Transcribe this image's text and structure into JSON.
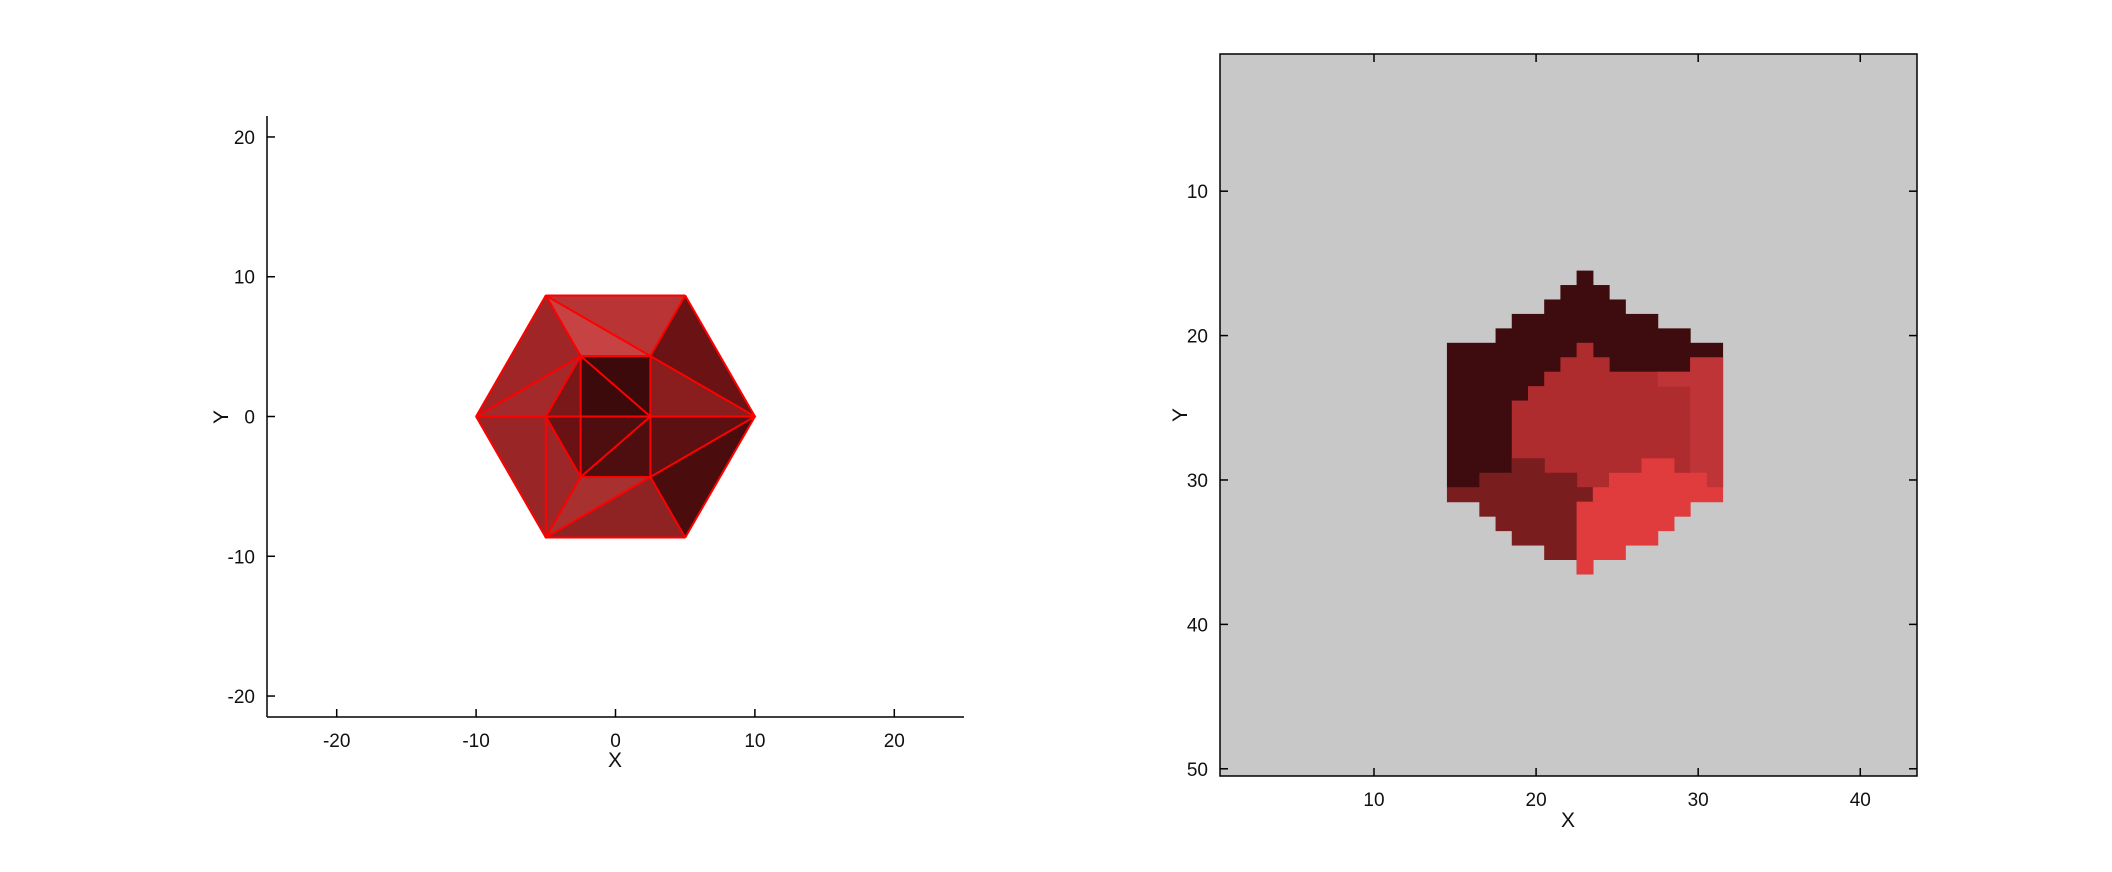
{
  "chart_data": [
    {
      "type": "mesh",
      "xlabel": "X",
      "ylabel": "Y",
      "xlim": [
        -25,
        25
      ],
      "ylim": [
        -21.5,
        21.5
      ],
      "xticks": [
        -20,
        -10,
        0,
        10,
        20
      ],
      "yticks": [
        -20,
        -10,
        0,
        10,
        20
      ],
      "grid": false,
      "edge_color": "#ff0000",
      "vertices": [
        {
          "x": 10,
          "y": 0
        },
        {
          "x": 5,
          "y": 8.66
        },
        {
          "x": -5,
          "y": 8.66
        },
        {
          "x": -10,
          "y": 0
        },
        {
          "x": -5,
          "y": -8.66
        },
        {
          "x": 5,
          "y": -8.66
        },
        {
          "x": -2.5,
          "y": 4.33
        },
        {
          "x": 2.5,
          "y": 4.33
        },
        {
          "x": -2.5,
          "y": -4.33
        },
        {
          "x": 2.5,
          "y": -4.33
        },
        {
          "x": 2.5,
          "y": 0
        },
        {
          "x": -2.5,
          "y": 0
        },
        {
          "x": -5,
          "y": 0
        }
      ],
      "faces": [
        {
          "v": [
            2,
            1,
            7
          ],
          "color": "#b93435"
        },
        {
          "v": [
            2,
            7,
            6
          ],
          "color": "#c74243"
        },
        {
          "v": [
            2,
            6,
            3
          ],
          "color": "#9f2526"
        },
        {
          "v": [
            1,
            0,
            7
          ],
          "color": "#6b1314"
        },
        {
          "v": [
            7,
            0,
            10
          ],
          "color": "#8a1d1e"
        },
        {
          "v": [
            0,
            9,
            10
          ],
          "color": "#5c1011"
        },
        {
          "v": [
            0,
            5,
            9
          ],
          "color": "#4a0c0d"
        },
        {
          "v": [
            9,
            5,
            4
          ],
          "color": "#8f2223"
        },
        {
          "v": [
            9,
            4,
            8
          ],
          "color": "#a8302f"
        },
        {
          "v": [
            4,
            12,
            8
          ],
          "color": "#9b2728"
        },
        {
          "v": [
            12,
            3,
            6
          ],
          "color": "#a3292a"
        },
        {
          "v": [
            12,
            6,
            11
          ],
          "color": "#7a1718"
        },
        {
          "v": [
            6,
            7,
            10,
            11
          ],
          "color": "#3d0a0b"
        },
        {
          "v": [
            11,
            10,
            9,
            8
          ],
          "color": "#4e0d0e"
        },
        {
          "v": [
            12,
            11,
            8
          ],
          "color": "#6a1213"
        },
        {
          "v": [
            3,
            12,
            4
          ],
          "color": "#9a2526"
        }
      ],
      "edges": [
        [
          0,
          1
        ],
        [
          1,
          2
        ],
        [
          2,
          3
        ],
        [
          3,
          4
        ],
        [
          4,
          5
        ],
        [
          5,
          0
        ],
        [
          6,
          7
        ],
        [
          7,
          10
        ],
        [
          10,
          9
        ],
        [
          9,
          8
        ],
        [
          8,
          11
        ],
        [
          11,
          6
        ],
        [
          2,
          7
        ],
        [
          6,
          3
        ],
        [
          7,
          1
        ],
        [
          7,
          0
        ],
        [
          10,
          0
        ],
        [
          9,
          0
        ],
        [
          9,
          5
        ],
        [
          9,
          4
        ],
        [
          8,
          4
        ],
        [
          12,
          4
        ],
        [
          12,
          3
        ],
        [
          12,
          6
        ],
        [
          12,
          11
        ],
        [
          12,
          8
        ],
        [
          6,
          10
        ],
        [
          11,
          10
        ],
        [
          8,
          10
        ],
        [
          6,
          2
        ]
      ]
    },
    {
      "type": "heatmap",
      "xlabel": "X",
      "ylabel": "Y",
      "xlim": [
        0.5,
        43.5
      ],
      "ylim": [
        50.5,
        0.5
      ],
      "xticks": [
        10,
        20,
        30,
        40
      ],
      "yticks": [
        10,
        20,
        30,
        40,
        50
      ],
      "background_color": "#c8c8c8",
      "colors": {
        "A": "#3e0c0e",
        "B": "#7a1d1f",
        "C": "#ae2b2e",
        "D": "#bf3537",
        "E": "#e03b3d"
      },
      "regions": [
        {
          "color": "A",
          "rows": [
            {
              "y": 16,
              "x": [
                23,
                23
              ]
            },
            {
              "y": 17,
              "x": [
                22,
                24
              ]
            },
            {
              "y": 18,
              "x": [
                21,
                25
              ]
            },
            {
              "y": 19,
              "x": [
                19,
                27
              ]
            },
            {
              "y": 20,
              "x": [
                18,
                29
              ]
            },
            {
              "y": 21,
              "x": [
                15,
                31
              ]
            },
            {
              "y": 22,
              "x": [
                15,
                31
              ]
            },
            {
              "y": 23,
              "x": [
                15,
                31
              ]
            },
            {
              "y": 24,
              "x": [
                15,
                31
              ]
            },
            {
              "y": 25,
              "x": [
                15,
                31
              ]
            },
            {
              "y": 26,
              "x": [
                15,
                31
              ]
            },
            {
              "y": 27,
              "x": [
                15,
                31
              ]
            },
            {
              "y": 28,
              "x": [
                15,
                31
              ]
            },
            {
              "y": 29,
              "x": [
                15,
                31
              ]
            },
            {
              "y": 30,
              "x": [
                15,
                31
              ]
            }
          ]
        },
        {
          "color": "C",
          "rows": [
            {
              "y": 21,
              "x": [
                23,
                23
              ]
            },
            {
              "y": 22,
              "x": [
                22,
                24
              ]
            },
            {
              "y": 23,
              "x": [
                21,
                27
              ]
            },
            {
              "y": 24,
              "x": [
                20,
                29
              ]
            },
            {
              "y": 25,
              "x": [
                19,
                29
              ]
            },
            {
              "y": 26,
              "x": [
                19,
                29
              ]
            },
            {
              "y": 27,
              "x": [
                19,
                29
              ]
            },
            {
              "y": 28,
              "x": [
                19,
                29
              ]
            },
            {
              "y": 29,
              "x": [
                19,
                29
              ]
            },
            {
              "y": 30,
              "x": [
                19,
                29
              ]
            }
          ]
        },
        {
          "color": "D",
          "rows": [
            {
              "y": 22,
              "x": [
                30,
                31
              ]
            },
            {
              "y": 23,
              "x": [
                28,
                31
              ]
            },
            {
              "y": 24,
              "x": [
                30,
                31
              ]
            },
            {
              "y": 25,
              "x": [
                30,
                31
              ]
            },
            {
              "y": 26,
              "x": [
                30,
                31
              ]
            },
            {
              "y": 27,
              "x": [
                30,
                31
              ]
            },
            {
              "y": 28,
              "x": [
                30,
                31
              ]
            },
            {
              "y": 29,
              "x": [
                30,
                31
              ]
            },
            {
              "y": 30,
              "x": [
                30,
                31
              ]
            }
          ]
        },
        {
          "color": "B",
          "rows": [
            {
              "y": 29,
              "x": [
                19,
                20
              ]
            },
            {
              "y": 30,
              "x": [
                17,
                22
              ]
            },
            {
              "y": 31,
              "x": [
                15,
                23
              ]
            },
            {
              "y": 32,
              "x": [
                17,
                23
              ]
            },
            {
              "y": 33,
              "x": [
                18,
                23
              ]
            },
            {
              "y": 34,
              "x": [
                19,
                23
              ]
            },
            {
              "y": 35,
              "x": [
                21,
                23
              ]
            },
            {
              "y": 36,
              "x": [
                23,
                23
              ]
            }
          ]
        },
        {
          "color": "E",
          "rows": [
            {
              "y": 29,
              "x": [
                27,
                28
              ]
            },
            {
              "y": 30,
              "x": [
                25,
                30
              ]
            },
            {
              "y": 31,
              "x": [
                24,
                31
              ]
            },
            {
              "y": 32,
              "x": [
                23,
                29
              ]
            },
            {
              "y": 33,
              "x": [
                23,
                28
              ]
            },
            {
              "y": 34,
              "x": [
                23,
                27
              ]
            },
            {
              "y": 35,
              "x": [
                23,
                25
              ]
            },
            {
              "y": 36,
              "x": [
                23,
                23
              ]
            }
          ]
        }
      ]
    }
  ]
}
